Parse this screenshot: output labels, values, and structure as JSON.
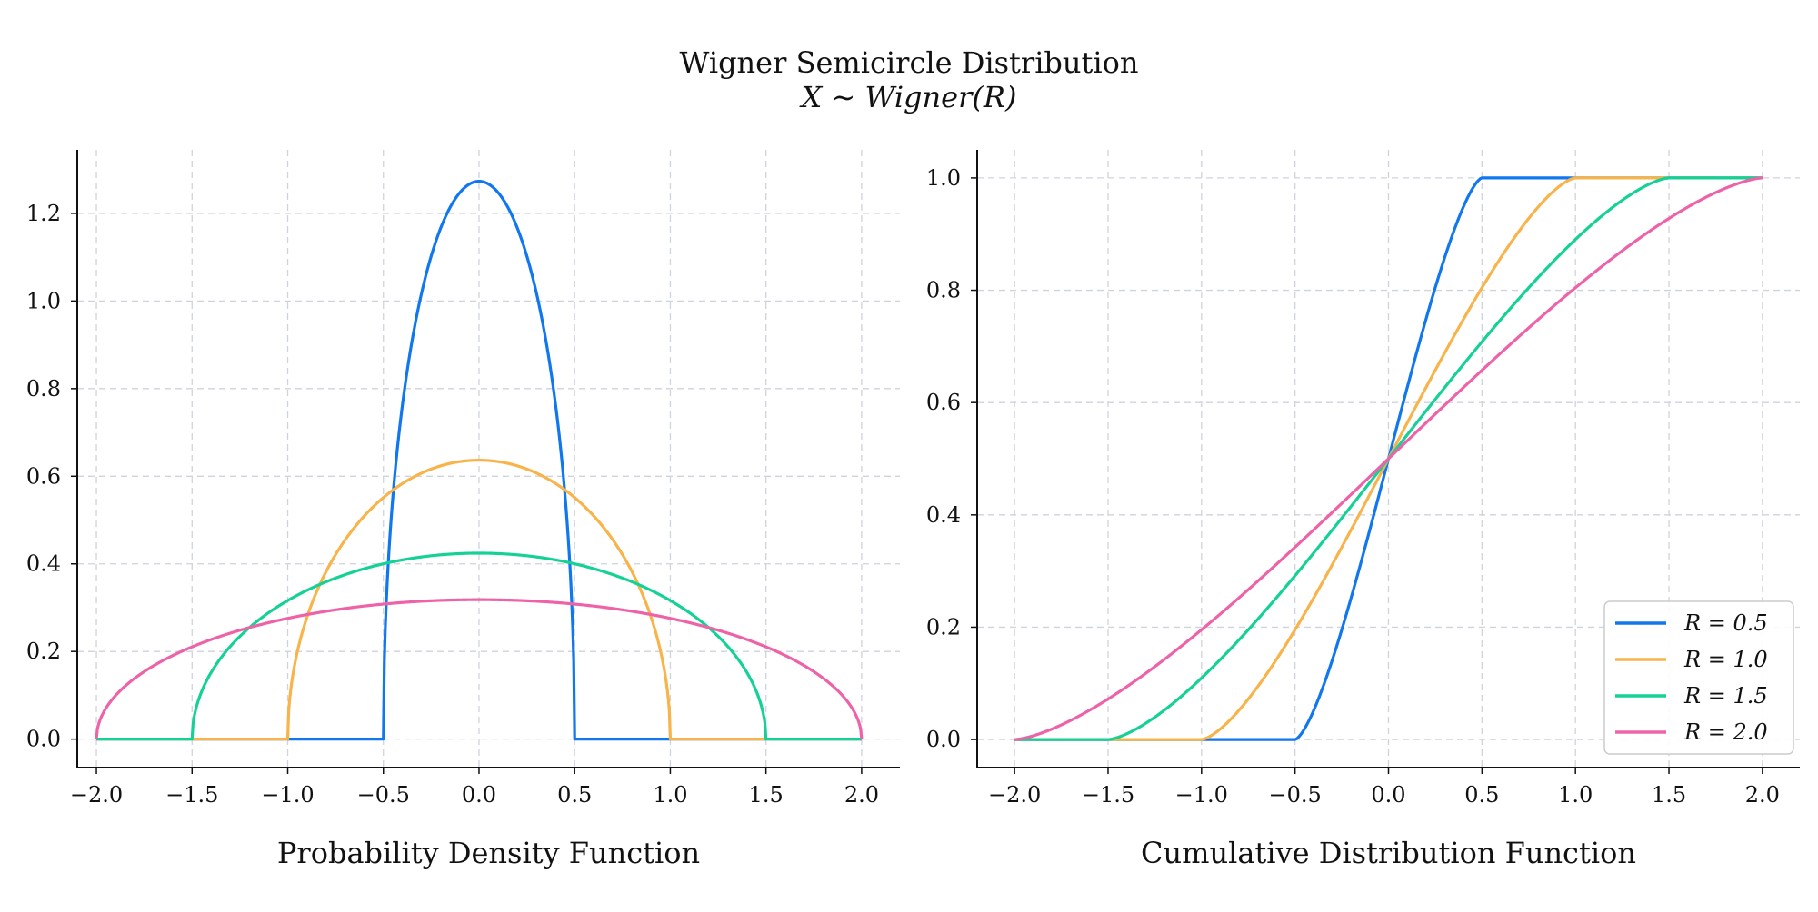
{
  "figure": {
    "title": "Wigner Semicircle Distribution",
    "subtitle": "X ∼ Wigner(R)"
  },
  "colors": {
    "R=0.5": "#1177ee",
    "R=1.0": "#f8b44a",
    "R=1.5": "#16d196",
    "R=2.0": "#ee63a8"
  },
  "chart_data": [
    {
      "type": "line",
      "xlabel": "Probability Density Function",
      "ylabel": "",
      "xlim": [
        -2.1,
        2.2
      ],
      "ylim": [
        -0.065,
        1.345
      ],
      "xticks": [
        -2.0,
        -1.5,
        -1.0,
        -0.5,
        0.0,
        0.5,
        1.0,
        1.5,
        2.0
      ],
      "xtick_labels": [
        "−2.0",
        "−1.5",
        "−1.0",
        "−0.5",
        "0.0",
        "0.5",
        "1.0",
        "1.5",
        "2.0"
      ],
      "yticks": [
        0.0,
        0.2,
        0.4,
        0.6,
        0.8,
        1.0,
        1.2
      ],
      "ytick_labels": [
        "0.0",
        "0.2",
        "0.4",
        "0.6",
        "0.8",
        "1.0",
        "1.2"
      ],
      "grid": true,
      "function": "pdf",
      "x_range": [
        -2.0,
        2.0
      ],
      "series": [
        {
          "name": "R = 0.5",
          "R": 0.5,
          "color": "#1177ee",
          "peak": 1.273
        },
        {
          "name": "R = 1.0",
          "R": 1.0,
          "color": "#f8b44a",
          "peak": 0.637
        },
        {
          "name": "R = 1.5",
          "R": 1.5,
          "color": "#16d196",
          "peak": 0.424
        },
        {
          "name": "R = 2.0",
          "R": 2.0,
          "color": "#ee63a8",
          "peak": 0.318
        }
      ]
    },
    {
      "type": "line",
      "xlabel": "Cumulative Distribution Function",
      "ylabel": "",
      "xlim": [
        -2.2,
        2.2
      ],
      "ylim": [
        -0.05,
        1.05
      ],
      "xticks": [
        -2.0,
        -1.5,
        -1.0,
        -0.5,
        0.0,
        0.5,
        1.0,
        1.5,
        2.0
      ],
      "xtick_labels": [
        "−2.0",
        "−1.5",
        "−1.0",
        "−0.5",
        "0.0",
        "0.5",
        "1.0",
        "1.5",
        "2.0"
      ],
      "yticks": [
        0.0,
        0.2,
        0.4,
        0.6,
        0.8,
        1.0
      ],
      "ytick_labels": [
        "0.0",
        "0.2",
        "0.4",
        "0.6",
        "0.8",
        "1.0"
      ],
      "grid": true,
      "function": "cdf",
      "x_range": [
        -2.0,
        2.0
      ],
      "legend": "bottom-right",
      "series": [
        {
          "name": "R = 0.5",
          "R": 0.5,
          "color": "#1177ee"
        },
        {
          "name": "R = 1.0",
          "R": 1.0,
          "color": "#f8b44a"
        },
        {
          "name": "R = 1.5",
          "R": 1.5,
          "color": "#16d196"
        },
        {
          "name": "R = 2.0",
          "R": 2.0,
          "color": "#ee63a8"
        }
      ]
    }
  ]
}
